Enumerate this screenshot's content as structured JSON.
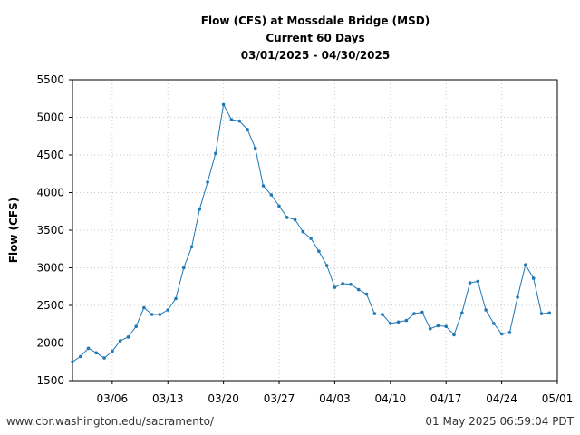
{
  "chart_data": {
    "type": "line",
    "title": [
      "Flow (CFS) at Mossdale Bridge (MSD)",
      "Current 60 Days",
      "03/01/2025 - 04/30/2025"
    ],
    "xlabel": "",
    "ylabel": "Flow (CFS)",
    "x_start_label": "03/01",
    "xlim_days": [
      0,
      61
    ],
    "ylim": [
      1500,
      5500
    ],
    "yticks": [
      1500,
      2000,
      2500,
      3000,
      3500,
      4000,
      4500,
      5000,
      5500
    ],
    "xticks": [
      {
        "day": 5,
        "label": "03/06"
      },
      {
        "day": 12,
        "label": "03/13"
      },
      {
        "day": 19,
        "label": "03/20"
      },
      {
        "day": 26,
        "label": "03/27"
      },
      {
        "day": 33,
        "label": "04/03"
      },
      {
        "day": 40,
        "label": "04/10"
      },
      {
        "day": 47,
        "label": "04/17"
      },
      {
        "day": 54,
        "label": "04/24"
      },
      {
        "day": 61,
        "label": "05/01"
      }
    ],
    "grid": true,
    "line_color": "#1f77b4",
    "series": [
      {
        "name": "Flow (CFS)",
        "x": [
          0,
          1,
          2,
          3,
          4,
          5,
          6,
          7,
          8,
          9,
          10,
          11,
          12,
          13,
          14,
          15,
          16,
          17,
          18,
          19,
          20,
          21,
          22,
          23,
          24,
          25,
          26,
          27,
          28,
          29,
          30,
          31,
          32,
          33,
          34,
          35,
          36,
          37,
          38,
          39,
          40,
          41,
          42,
          43,
          44,
          45,
          46,
          47,
          48,
          49,
          50,
          51,
          52,
          53,
          54,
          55,
          56,
          57,
          58,
          59,
          60
        ],
        "values": [
          1750,
          1820,
          1930,
          1870,
          1800,
          1890,
          2030,
          2080,
          2220,
          2470,
          2380,
          2380,
          2440,
          2590,
          3000,
          3280,
          3780,
          4140,
          4520,
          5170,
          4970,
          4950,
          4840,
          4590,
          4090,
          3970,
          3820,
          3670,
          3640,
          3480,
          3390,
          3220,
          3030,
          2740,
          2790,
          2780,
          2710,
          2650,
          2390,
          2380,
          2260,
          2280,
          2300,
          2390,
          2410,
          2190,
          2230,
          2220,
          2110,
          2400,
          2800,
          2820,
          2440,
          2260,
          2120,
          2140,
          2610,
          3040,
          2860,
          2390,
          2400
        ]
      }
    ]
  },
  "footer": {
    "url": "www.cbr.washington.edu/sacramento/",
    "timestamp": "01 May 2025 06:59:04 PDT"
  }
}
